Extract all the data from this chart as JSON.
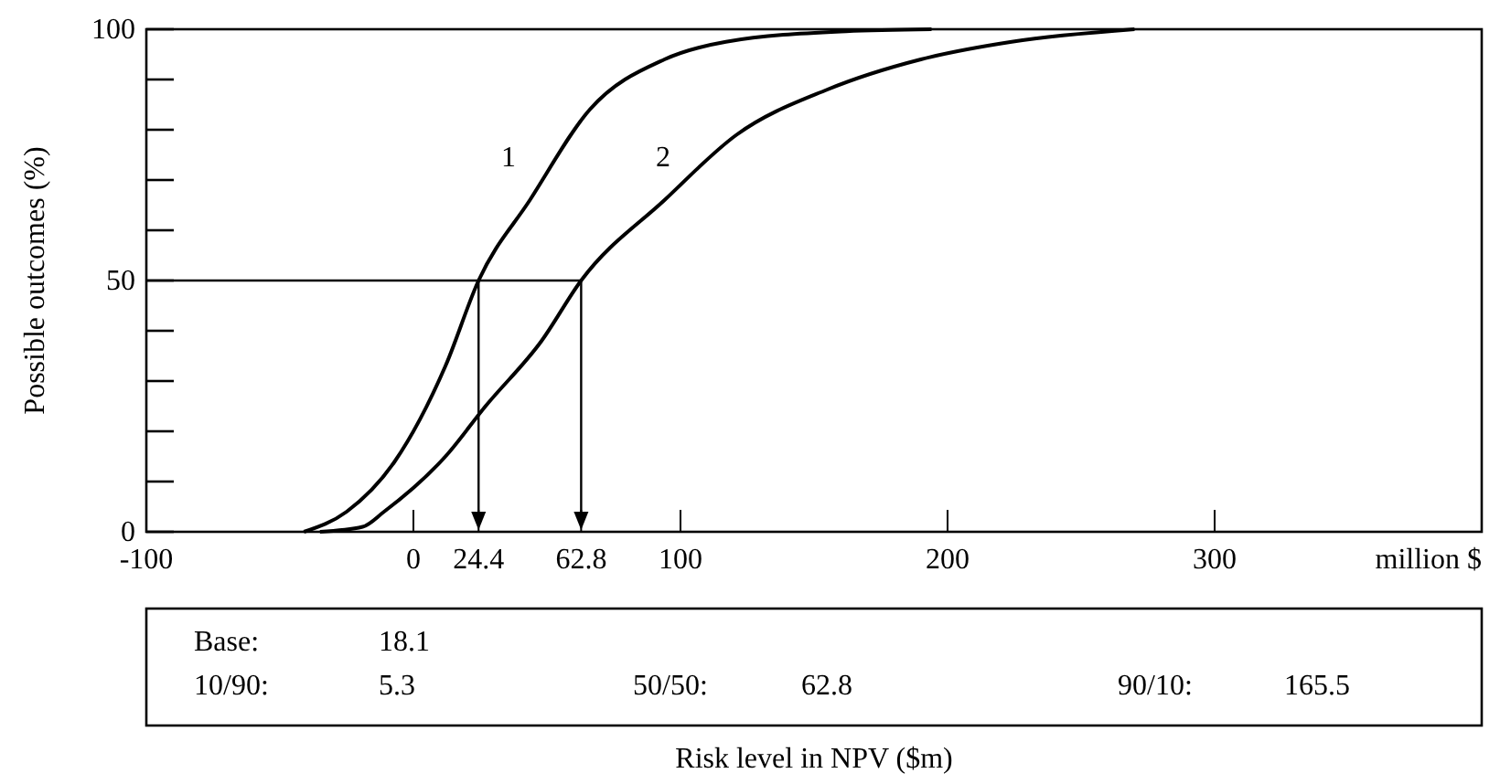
{
  "chart_data": {
    "type": "line",
    "xlabel": "million $",
    "ylabel": "Possible outcomes (%)",
    "xlim": [
      -100,
      400
    ],
    "ylim": [
      0,
      100
    ],
    "xticks": [
      -100,
      0,
      24.4,
      62.8,
      100,
      200,
      300
    ],
    "yticks": [
      0,
      {
        "value": 10,
        "label": null
      },
      {
        "value": 20,
        "label": null
      },
      {
        "value": 30,
        "label": null
      },
      {
        "value": 40,
        "label": null
      },
      50,
      {
        "value": 60,
        "label": null
      },
      {
        "value": 70,
        "label": null
      },
      {
        "value": 80,
        "label": null
      },
      {
        "value": 90,
        "label": null
      },
      100
    ],
    "grid": false,
    "legend": false,
    "marker": "none",
    "line_style": "solid",
    "series": [
      {
        "name": "1",
        "color": "#000000",
        "x": [
          -41,
          -25,
          -7,
          12,
          24.4,
          43.6,
          66,
          94,
          117,
          162,
          194
        ],
        "values": [
          0,
          4,
          14,
          33,
          50,
          66,
          84,
          94,
          97.5,
          99.6,
          100
        ]
      },
      {
        "name": "2",
        "color": "#000000",
        "x": [
          -35,
          -19,
          -11,
          12,
          27,
          48,
          62.8,
          94,
          121,
          155,
          190,
          224,
          270
        ],
        "values": [
          0,
          1,
          4,
          15,
          25,
          38,
          50,
          66,
          79,
          88,
          94,
          97.5,
          100
        ]
      }
    ],
    "ref_lines": [
      {
        "axis": "y",
        "value": 50
      },
      {
        "axis": "x",
        "value": 24.4
      },
      {
        "axis": "x",
        "value": 62.8
      }
    ],
    "annotations": [
      "Base:",
      "18.1",
      "10/90:",
      "5.3",
      "50/50:",
      "62.8",
      "90/10:",
      "165.5",
      "Risk level in NPV ($m)"
    ]
  }
}
